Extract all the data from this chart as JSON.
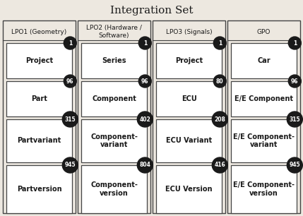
{
  "title": "Integration Set",
  "columns": [
    {
      "header": "LPO1 (Geometry)",
      "items": [
        {
          "label": "Project",
          "count": "1"
        },
        {
          "label": "Part",
          "count": "96"
        },
        {
          "label": "Partvariant",
          "count": "315"
        },
        {
          "label": "Partversion",
          "count": "945"
        }
      ]
    },
    {
      "header": "LPO2 (Hardware /\nSoftware)",
      "items": [
        {
          "label": "Series",
          "count": "1"
        },
        {
          "label": "Component",
          "count": "96"
        },
        {
          "label": "Component-\nvariant",
          "count": "402"
        },
        {
          "label": "Component-\nversion",
          "count": "804"
        }
      ]
    },
    {
      "header": "LPO3 (Signals)",
      "items": [
        {
          "label": "Project",
          "count": "1"
        },
        {
          "label": "ECU",
          "count": "80"
        },
        {
          "label": "ECU Variant",
          "count": "208"
        },
        {
          "label": "ECU Version",
          "count": "416"
        }
      ]
    },
    {
      "header": "GPO",
      "items": [
        {
          "label": "Car",
          "count": "1"
        },
        {
          "label": "E/E Component",
          "count": "96"
        },
        {
          "label": "E/E Component-\nvariant",
          "count": "315"
        },
        {
          "label": "E/E Component-\nversion",
          "count": "945"
        }
      ]
    }
  ],
  "bg_color": "#ede8e0",
  "box_bg": "#ffffff",
  "circle_color": "#1a1a1a",
  "circle_text_color": "#ffffff",
  "border_color": "#444444",
  "text_color": "#1a1a1a",
  "title_fontsize": 11,
  "header_fontsize": 6.5,
  "label_fontsize": 7,
  "count_fontsize": 5.5,
  "fig_width": 4.29,
  "fig_height": 3.06,
  "dpi": 100
}
